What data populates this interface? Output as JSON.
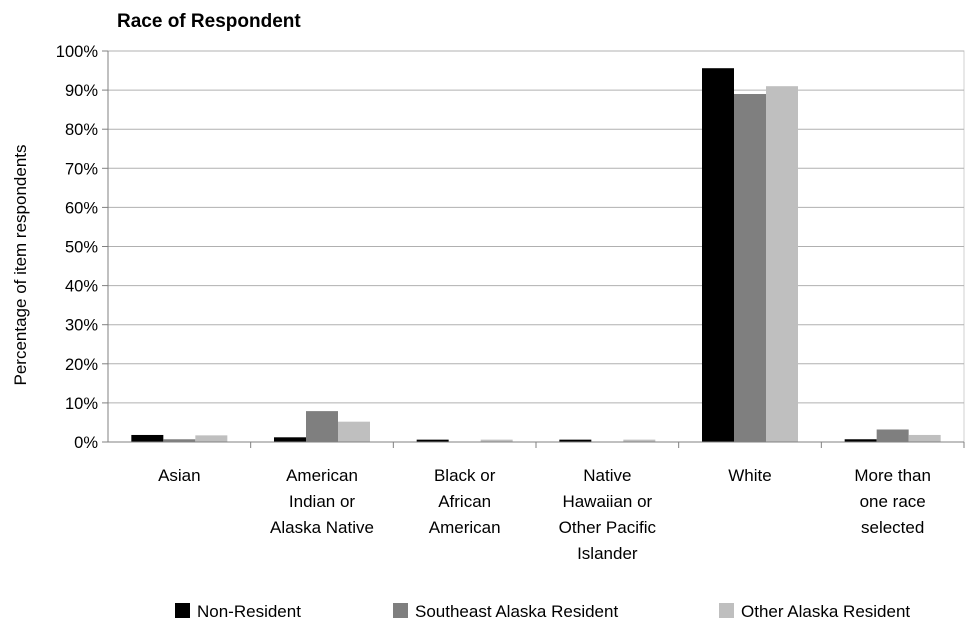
{
  "chart_data": {
    "type": "bar",
    "title": "Race of Respondent",
    "xlabel": "",
    "ylabel": "Percentage of item respondents",
    "ylim": [
      0,
      100
    ],
    "yticks": [
      "0%",
      "10%",
      "20%",
      "30%",
      "40%",
      "50%",
      "60%",
      "70%",
      "80%",
      "90%",
      "100%"
    ],
    "grid": true,
    "legend_position": "bottom",
    "categories": [
      [
        "Asian"
      ],
      [
        "American",
        "Indian or",
        "Alaska Native"
      ],
      [
        "Black or",
        "African",
        "American"
      ],
      [
        "Native",
        "Hawaiian or",
        "Other Pacific",
        "Islander"
      ],
      [
        "White"
      ],
      [
        "More than",
        "one race",
        "selected"
      ]
    ],
    "series": [
      {
        "name": "Non-Resident",
        "color": "#000000",
        "values": [
          1.8,
          1.2,
          0.6,
          0.6,
          95.6,
          0.7
        ]
      },
      {
        "name": "Southeast Alaska Resident",
        "color": "#7f7f7f",
        "values": [
          0.7,
          7.9,
          0.0,
          0.0,
          89.0,
          3.2
        ]
      },
      {
        "name": "Other Alaska Resident",
        "color": "#bfbfbf",
        "values": [
          1.7,
          5.2,
          0.6,
          0.6,
          91.0,
          1.8
        ]
      }
    ]
  }
}
